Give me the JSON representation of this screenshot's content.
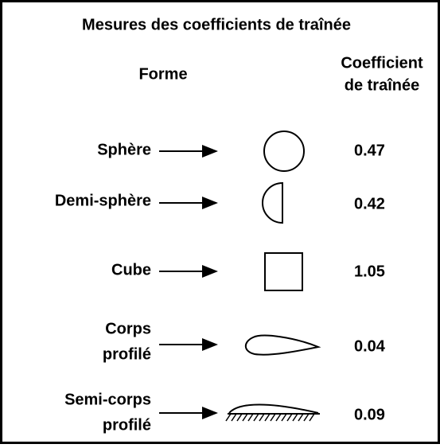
{
  "header": {
    "title": "Mesures des coefficients de traînée",
    "column_shape": "Forme",
    "column_coefficient": [
      "Coefficient",
      "de traînée"
    ]
  },
  "rows": [
    {
      "name": [
        "Sphère"
      ],
      "coefficient": 0.47
    },
    {
      "name": [
        "Demi-sphère"
      ],
      "coefficient": 0.42
    },
    {
      "name": [
        "Cube"
      ],
      "coefficient": 1.05
    },
    {
      "name": [
        "Corps",
        "profilé"
      ],
      "coefficient": 0.04
    },
    {
      "name": [
        "Semi-corps",
        "profilé"
      ],
      "coefficient": 0.09
    }
  ]
}
